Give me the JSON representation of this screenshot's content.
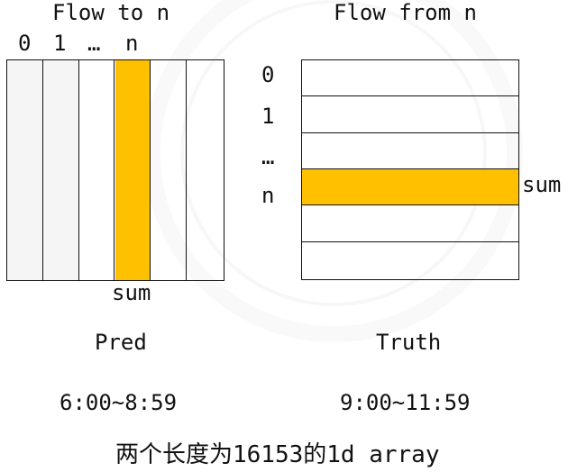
{
  "pred": {
    "title": "Flow to n",
    "ticks": [
      "0",
      "1",
      "…",
      "n"
    ],
    "sum_label": "sum",
    "name": "Pred",
    "time_range": "6:00~8:59",
    "column_count": 6,
    "highlight_index": 3
  },
  "truth": {
    "title": "Flow from n",
    "ticks": [
      "0",
      "1",
      "…",
      "n"
    ],
    "sum_label": "sum",
    "name": "Truth",
    "time_range": "9:00~11:59",
    "row_count": 6,
    "highlight_index": 3
  },
  "caption": "两个长度为16153的1d array",
  "colors": {
    "highlight": "#FFC000",
    "border": "#111111",
    "background": "#FFFFFF"
  }
}
